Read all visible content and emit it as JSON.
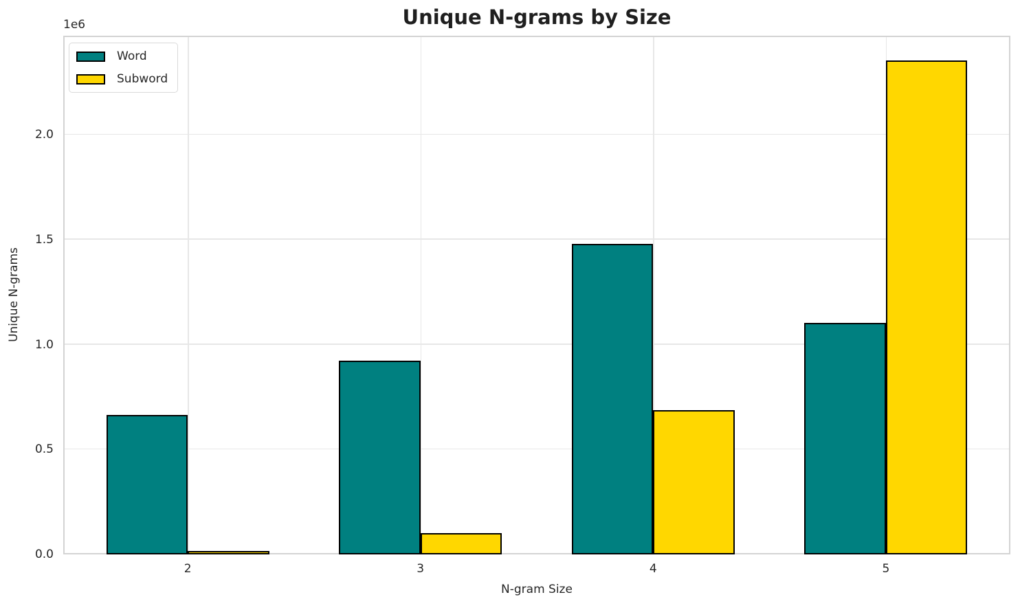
{
  "chart_data": {
    "type": "bar",
    "title": "Unique N-grams by Size",
    "xlabel": "N-gram Size",
    "ylabel": "Unique N-grams",
    "offset_text": "1e6",
    "categories": [
      "2",
      "3",
      "4",
      "5"
    ],
    "series": [
      {
        "name": "Word",
        "color": "#008080",
        "values": [
          665000,
          924000,
          1481000,
          1104000
        ]
      },
      {
        "name": "Subword",
        "color": "#FFD700",
        "values": [
          16000,
          102000,
          688000,
          2354000
        ]
      }
    ],
    "yticks": {
      "values": [
        0,
        500000,
        1000000,
        1500000,
        2000000
      ],
      "labels": [
        "0.0",
        "0.5",
        "1.0",
        "1.5",
        "2.0"
      ]
    },
    "ylim": [
      0,
      2472000
    ],
    "xlim": [
      -0.535,
      3.535
    ],
    "bar_width": 0.35,
    "bar_edge_color": "#000000",
    "grid": true,
    "legend_position": "upper left",
    "colors": {
      "grid": "#e7e7e7",
      "spine": "#d3d3d3",
      "text": "#262626"
    }
  }
}
